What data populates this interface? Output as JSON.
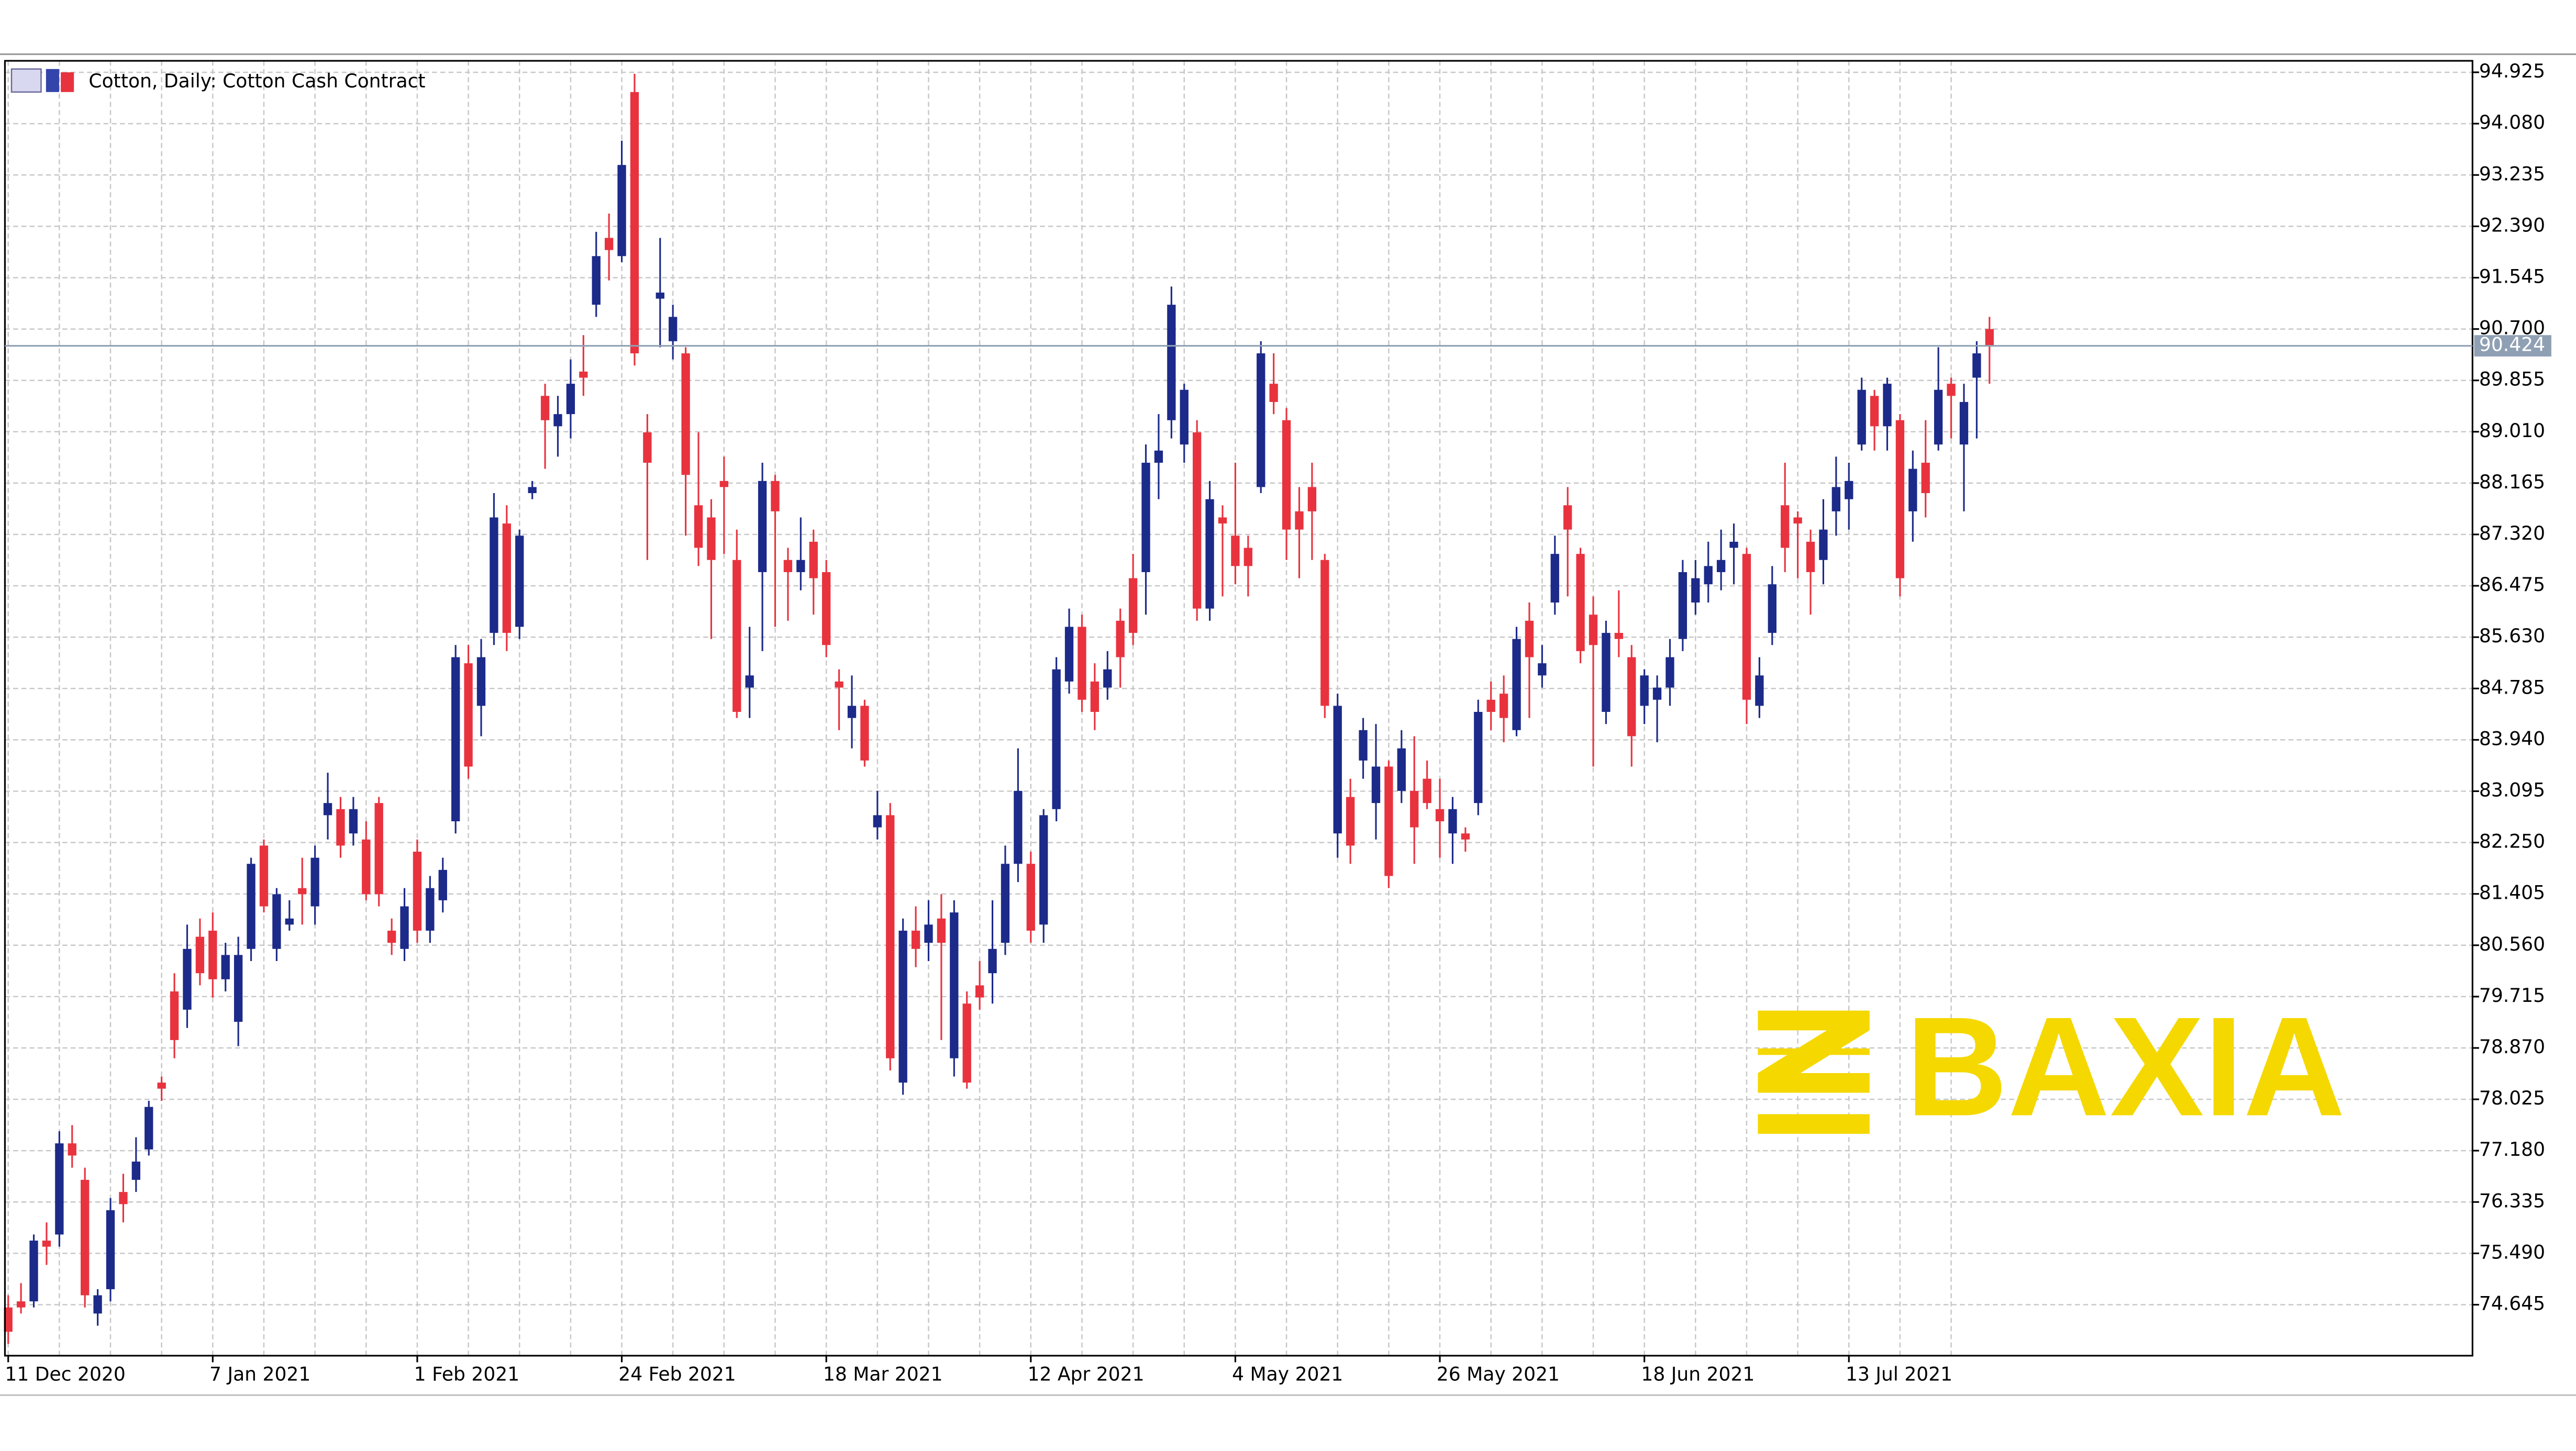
{
  "chart_data": {
    "type": "candlestick",
    "title": "Cotton, Daily:  Cotton Cash Contract",
    "watermark": "BAXIA",
    "up_color": "#1c2a8a",
    "down_color": "#e8333f",
    "grid": true,
    "last_price": 90.424,
    "ylim": [
      73.806,
      95.114
    ],
    "yticks": [
      94.925,
      {
        "value": 94.08,
        "label": "94.080"
      },
      93.235,
      {
        "value": 92.39,
        "label": "92.390"
      },
      91.545,
      {
        "value": 90.7,
        "label": "90.700"
      },
      89.855,
      {
        "value": 89.01,
        "label": "89.010"
      },
      88.165,
      {
        "value": 87.32,
        "label": "87.320"
      },
      86.475,
      {
        "value": 85.63,
        "label": "85.630"
      },
      84.785,
      {
        "value": 83.94,
        "label": "83.940"
      },
      83.095,
      {
        "value": 82.25,
        "label": "82.250"
      },
      81.405,
      {
        "value": 80.56,
        "label": "80.560"
      },
      79.715,
      {
        "value": 78.87,
        "label": "78.870"
      },
      78.025,
      {
        "value": 77.18,
        "label": "77.180"
      },
      76.335,
      {
        "value": 75.49,
        "label": "75.490"
      },
      74.645
    ],
    "categories": [
      "11 Dec 2020",
      null,
      null,
      null,
      null,
      null,
      null,
      null,
      null,
      null,
      null,
      null,
      null,
      null,
      null,
      null,
      "7 Jan 2021",
      null,
      null,
      null,
      null,
      null,
      null,
      null,
      null,
      null,
      null,
      null,
      null,
      null,
      null,
      null,
      "1 Feb 2021",
      null,
      null,
      null,
      null,
      null,
      null,
      null,
      null,
      null,
      null,
      null,
      null,
      null,
      null,
      null,
      "24 Feb 2021",
      null,
      null,
      null,
      null,
      null,
      null,
      null,
      null,
      null,
      null,
      null,
      null,
      null,
      null,
      null,
      "18 Mar 2021",
      null,
      null,
      null,
      null,
      null,
      null,
      null,
      null,
      null,
      null,
      null,
      null,
      null,
      null,
      null,
      "12 Apr 2021",
      null,
      null,
      null,
      null,
      null,
      null,
      null,
      null,
      null,
      null,
      null,
      null,
      null,
      null,
      null,
      "4 May 2021",
      null,
      null,
      null,
      null,
      null,
      null,
      null,
      null,
      null,
      null,
      null,
      null,
      null,
      null,
      null,
      "26 May 2021",
      null,
      null,
      null,
      null,
      null,
      null,
      null,
      null,
      null,
      null,
      null,
      null,
      null,
      null,
      null,
      "18 Jun 2021",
      null,
      null,
      null,
      null,
      null,
      null,
      null,
      null,
      null,
      null,
      null,
      null,
      null,
      null,
      null,
      "13 Jul 2021",
      null,
      null,
      null,
      null,
      null,
      null,
      null,
      null,
      null,
      null,
      null
    ],
    "open": [
      74.6,
      74.7,
      74.7,
      75.7,
      75.8,
      77.3,
      76.7,
      74.5,
      74.9,
      76.5,
      76.7,
      77.2,
      78.3,
      79.8,
      79.5,
      80.7,
      80.8,
      80.0,
      79.3,
      80.5,
      82.2,
      80.5,
      80.9,
      81.5,
      81.2,
      82.7,
      82.8,
      82.4,
      82.3,
      82.9,
      80.8,
      80.5,
      82.1,
      80.8,
      81.3,
      82.6,
      85.2,
      84.5,
      85.7,
      87.5,
      85.8,
      88.0,
      89.6,
      89.1,
      89.3,
      90.0,
      91.1,
      92.2,
      91.9,
      94.6,
      89.0,
      91.2,
      90.5,
      90.3,
      87.8,
      87.6,
      88.2,
      86.9,
      84.8,
      86.7,
      88.2,
      86.9,
      86.7,
      87.2,
      86.7,
      84.9,
      84.3,
      84.5,
      82.5,
      82.7,
      78.3,
      80.8,
      80.6,
      81.0,
      78.7,
      79.6,
      79.9,
      80.1,
      80.6,
      81.9,
      81.9,
      80.9,
      82.8,
      84.9,
      85.8,
      84.9,
      84.8,
      85.9,
      86.6,
      86.7,
      88.5,
      89.2,
      88.8,
      89.0,
      86.1,
      87.6,
      87.3,
      87.1,
      88.1,
      89.8,
      89.2,
      87.7,
      88.1,
      86.9,
      82.4,
      83.0,
      83.6,
      82.9,
      83.5,
      83.1,
      83.1,
      83.3,
      82.8,
      82.4,
      82.4,
      82.9,
      84.6,
      84.7,
      84.1,
      85.9,
      85.0,
      86.2,
      87.8,
      87.0,
      86.0,
      84.4,
      85.7,
      85.3,
      84.5,
      84.6,
      84.8,
      85.6,
      86.2,
      86.5,
      86.7,
      87.1,
      87.0,
      84.5,
      85.7,
      87.8,
      87.6,
      87.2,
      86.9,
      87.7,
      87.9,
      88.8,
      89.6,
      89.1,
      89.2,
      87.7,
      88.5,
      88.8,
      89.8,
      88.8,
      89.9,
      90.7
    ],
    "high": [
      74.8,
      75.0,
      75.8,
      76.0,
      77.5,
      77.6,
      76.9,
      74.9,
      76.4,
      76.8,
      77.4,
      78.0,
      78.4,
      80.1,
      80.9,
      81.0,
      81.1,
      80.6,
      80.7,
      82.0,
      82.3,
      81.5,
      81.3,
      82.0,
      82.2,
      83.4,
      83.0,
      83.0,
      82.6,
      83.0,
      81.0,
      81.5,
      82.3,
      81.7,
      82.0,
      85.5,
      85.5,
      85.6,
      88.0,
      87.8,
      87.4,
      88.2,
      89.8,
      89.6,
      90.2,
      90.6,
      92.3,
      92.6,
      93.8,
      94.9,
      89.3,
      92.2,
      91.1,
      90.4,
      89.0,
      87.9,
      88.6,
      87.4,
      85.8,
      88.5,
      88.3,
      87.1,
      87.6,
      87.4,
      86.9,
      85.1,
      85.0,
      84.6,
      83.1,
      82.9,
      81.0,
      81.2,
      81.3,
      81.4,
      81.3,
      79.8,
      80.3,
      81.3,
      82.2,
      83.8,
      82.1,
      82.8,
      85.3,
      86.1,
      86.0,
      85.2,
      85.4,
      86.1,
      87.0,
      88.8,
      89.3,
      91.4,
      89.8,
      89.2,
      88.2,
      87.8,
      88.5,
      87.3,
      90.5,
      90.3,
      89.4,
      88.1,
      88.5,
      87.0,
      84.7,
      83.3,
      84.3,
      84.2,
      83.6,
      84.1,
      84.0,
      83.6,
      83.3,
      83.0,
      82.5,
      84.6,
      84.9,
      85.0,
      85.8,
      86.2,
      85.5,
      87.3,
      88.1,
      87.1,
      86.3,
      85.9,
      86.4,
      85.5,
      85.1,
      85.0,
      85.6,
      86.9,
      86.9,
      87.2,
      87.4,
      87.5,
      87.1,
      85.3,
      86.8,
      88.5,
      87.7,
      87.4,
      87.9,
      88.6,
      88.5,
      89.9,
      89.7,
      89.9,
      89.3,
      88.7,
      89.2,
      90.4,
      89.9,
      89.8,
      90.5,
      90.9
    ],
    "low": [
      74.0,
      74.5,
      74.6,
      75.3,
      75.6,
      76.9,
      74.6,
      74.3,
      74.7,
      76.0,
      76.5,
      77.1,
      78.0,
      78.7,
      79.2,
      79.9,
      79.7,
      79.8,
      78.9,
      80.3,
      81.1,
      80.3,
      80.8,
      80.9,
      80.9,
      82.3,
      82.0,
      82.2,
      81.3,
      81.2,
      80.4,
      80.3,
      80.6,
      80.6,
      81.1,
      82.4,
      83.3,
      84.0,
      85.5,
      85.4,
      85.6,
      87.9,
      88.4,
      88.6,
      88.9,
      89.6,
      90.9,
      91.5,
      91.8,
      90.1,
      86.9,
      90.4,
      90.2,
      87.3,
      86.8,
      85.6,
      87.0,
      84.3,
      84.3,
      85.4,
      85.8,
      85.9,
      86.4,
      86.0,
      85.3,
      84.1,
      83.8,
      83.5,
      82.3,
      78.5,
      78.1,
      80.2,
      80.3,
      79.0,
      78.4,
      78.2,
      79.5,
      79.6,
      80.4,
      81.6,
      80.6,
      80.6,
      82.6,
      84.7,
      84.4,
      84.1,
      84.6,
      84.8,
      85.5,
      86.0,
      87.9,
      88.9,
      88.5,
      85.9,
      85.9,
      86.3,
      86.5,
      86.3,
      88.0,
      89.3,
      86.9,
      86.6,
      86.9,
      84.3,
      82.0,
      81.9,
      83.3,
      82.3,
      81.5,
      82.9,
      81.9,
      82.8,
      82.0,
      81.9,
      82.1,
      82.7,
      84.1,
      83.9,
      84.0,
      84.3,
      84.8,
      86.0,
      86.3,
      85.2,
      83.5,
      84.2,
      85.3,
      83.5,
      84.2,
      83.9,
      84.5,
      85.4,
      86.0,
      86.2,
      86.4,
      86.5,
      84.2,
      84.3,
      85.5,
      86.7,
      86.6,
      86.0,
      86.5,
      87.3,
      87.4,
      88.7,
      88.7,
      88.7,
      86.3,
      87.2,
      87.6,
      88.7,
      88.9,
      87.7,
      88.9,
      89.8
    ],
    "close": [
      74.2,
      74.6,
      75.7,
      75.6,
      77.3,
      77.1,
      74.8,
      74.8,
      76.2,
      76.3,
      77.0,
      77.9,
      78.2,
      79.0,
      80.5,
      80.1,
      80.0,
      80.4,
      80.4,
      81.9,
      81.2,
      81.4,
      81,
      81.4,
      82.0,
      82.9,
      82.2,
      82.8,
      81.4,
      81.4,
      80.6,
      81.2,
      80.8,
      81.5,
      81.8,
      85.3,
      83.5,
      85.3,
      87.6,
      85.7,
      87.3,
      88.1,
      89.2,
      89.3,
      89.8,
      89.9,
      91.9,
      92.0,
      93.4,
      90.3,
      88.5,
      91.3,
      90.9,
      88.3,
      87.1,
      86.9,
      88.1,
      84.4,
      85.0,
      88.2,
      87.7,
      86.7,
      86.9,
      86.6,
      85.5,
      84.8,
      84.5,
      83.6,
      82.7,
      78.7,
      80.8,
      80.5,
      80.9,
      80.6,
      81.1,
      78.3,
      79.7,
      80.5,
      81.9,
      83.1,
      80.8,
      82.7,
      85.1,
      85.8,
      84.6,
      84.4,
      85.1,
      85.3,
      85.7,
      88.5,
      88.7,
      91.1,
      89.7,
      86.1,
      87.9,
      87.5,
      86.8,
      86.8,
      90.3,
      89.5,
      87.4,
      87.4,
      87.7,
      84.5,
      84.5,
      82.2,
      84.1,
      83.5,
      81.7,
      83.8,
      82.5,
      82.9,
      82.6,
      82.8,
      82.3,
      84.4,
      84.4,
      84.3,
      85.6,
      85.3,
      85.2,
      87.0,
      87.4,
      85.4,
      85.5,
      85.7,
      85.6,
      84.0,
      85.0,
      84.8,
      85.3,
      86.7,
      86.6,
      86.8,
      86.9,
      87.2,
      84.6,
      85.0,
      86.5,
      87.1,
      87.5,
      86.7,
      87.4,
      88.1,
      88.2,
      89.7,
      89.1,
      89.8,
      86.6,
      88.4,
      88.0,
      89.7,
      89.6,
      89.5,
      90.3,
      90.42
    ]
  }
}
